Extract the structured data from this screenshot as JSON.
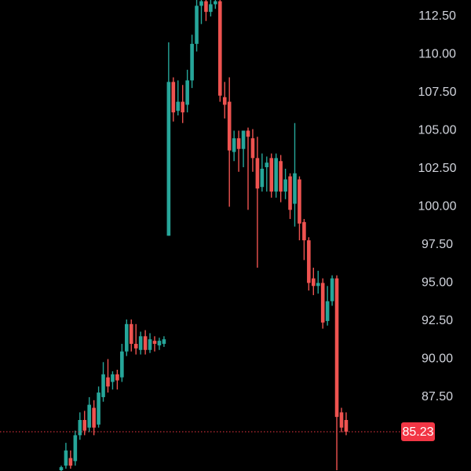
{
  "chart_data": {
    "type": "candlestick",
    "categories": [
      null,
      null,
      null,
      null,
      null,
      null,
      null,
      null,
      null,
      null,
      null,
      null,
      null,
      null,
      null,
      null,
      null,
      null,
      null,
      null,
      null,
      null,
      null,
      null,
      null,
      null,
      null,
      null,
      null,
      null,
      null,
      null,
      null,
      null,
      null,
      null,
      null,
      null,
      null,
      null,
      null,
      null,
      null,
      null,
      null,
      null,
      null,
      null,
      null,
      null,
      null,
      null,
      null,
      null,
      null,
      null,
      null,
      null,
      null,
      null,
      null,
      null
    ],
    "open": [
      82.7,
      83.0,
      83.5,
      83.3,
      85.0,
      86.0,
      85.5,
      86.8,
      85.7,
      87.5,
      88.8,
      88.5,
      89.0,
      88.8,
      90.5,
      92.3,
      91.0,
      90.6,
      91.5,
      90.6,
      91.2,
      90.9,
      91.0,
      98.1,
      108.2,
      106.3,
      106.9,
      106.7,
      108.3,
      110.7,
      113.2,
      113.5,
      112.8,
      113.3,
      113.5,
      107.2,
      106.9,
      103.6,
      104.5,
      103.8,
      105.0,
      104.5,
      103.2,
      101.3,
      102.6,
      103.2,
      101.0,
      103.0,
      101.0,
      102.0,
      100.2,
      101.8,
      99.0,
      97.8,
      95.3,
      94.8,
      95.0,
      92.5,
      93.8,
      95.3,
      86.5,
      86.0
    ],
    "high": [
      83.0,
      84.5,
      84.0,
      85.3,
      86.5,
      86.6,
      87.5,
      87.3,
      88.2,
      89.8,
      90.0,
      89.2,
      89.3,
      91.0,
      92.6,
      92.6,
      92.3,
      91.8,
      91.9,
      91.7,
      91.5,
      91.4,
      91.5,
      110.8,
      108.5,
      108.3,
      108.0,
      109.0,
      111.3,
      113.6,
      113.6,
      113.6,
      113.6,
      113.6,
      113.6,
      108.2,
      108.5,
      105.0,
      105.0,
      105.0,
      105.2,
      105.1,
      104.6,
      103.5,
      103.3,
      103.5,
      103.5,
      103.4,
      102.5,
      102.2,
      105.5,
      102.0,
      99.2,
      98.0,
      96.0,
      95.8,
      95.3,
      94.8,
      95.5,
      95.5,
      86.8,
      86.5
    ],
    "low": [
      82.6,
      82.8,
      82.8,
      83.0,
      84.7,
      85.0,
      85.2,
      85.0,
      85.5,
      87.2,
      87.8,
      88.0,
      88.0,
      88.5,
      90.2,
      90.5,
      90.3,
      90.3,
      90.3,
      90.4,
      90.5,
      90.6,
      90.8,
      98.1,
      105.6,
      106.0,
      105.5,
      106.2,
      107.8,
      110.2,
      112.0,
      112.2,
      112.5,
      113.0,
      106.9,
      105.8,
      100.0,
      103.0,
      102.3,
      102.6,
      99.8,
      102.3,
      96.0,
      101.0,
      101.0,
      100.6,
      100.6,
      100.3,
      100.5,
      99.2,
      98.7,
      97.8,
      96.5,
      94.5,
      94.2,
      94.3,
      92.0,
      92.2,
      93.5,
      82.7,
      85.2,
      85.0
    ],
    "close": [
      82.9,
      84.0,
      83.0,
      85.0,
      86.0,
      85.3,
      87.0,
      85.5,
      87.8,
      89.0,
      88.2,
      89.0,
      88.6,
      90.5,
      92.3,
      91.0,
      90.7,
      91.5,
      90.6,
      91.3,
      91.0,
      91.2,
      91.3,
      108.2,
      106.2,
      106.9,
      106.2,
      108.3,
      110.7,
      113.2,
      113.5,
      112.8,
      113.3,
      113.5,
      107.3,
      106.7,
      103.7,
      104.5,
      103.8,
      105.0,
      104.6,
      103.2,
      101.2,
      102.5,
      102.9,
      101.0,
      103.2,
      101.0,
      101.8,
      99.8,
      102.2,
      98.9,
      97.8,
      95.0,
      94.8,
      95.0,
      92.4,
      93.8,
      95.3,
      86.2,
      85.5,
      85.23
    ],
    "up_color": "#26a69a",
    "down_color": "#ef5350",
    "ylim": [
      82.65,
      113.58
    ],
    "yticks": [
      {
        "value": 87.5,
        "label": "87.50"
      },
      {
        "value": 90,
        "label": "90.00"
      },
      {
        "value": 92.5,
        "label": "92.50"
      },
      {
        "value": 95,
        "label": "95.00"
      },
      {
        "value": 97.5,
        "label": "97.50"
      },
      {
        "value": 100,
        "label": "100.00"
      },
      {
        "value": 102.5,
        "label": "102.50"
      },
      {
        "value": 105,
        "label": "105.00"
      },
      {
        "value": 107.5,
        "label": "107.50"
      },
      {
        "value": 110,
        "label": "110.00"
      },
      {
        "value": 112.5,
        "label": "112.50"
      }
    ],
    "last_price": 85.23,
    "last_price_color": "#f23645"
  }
}
